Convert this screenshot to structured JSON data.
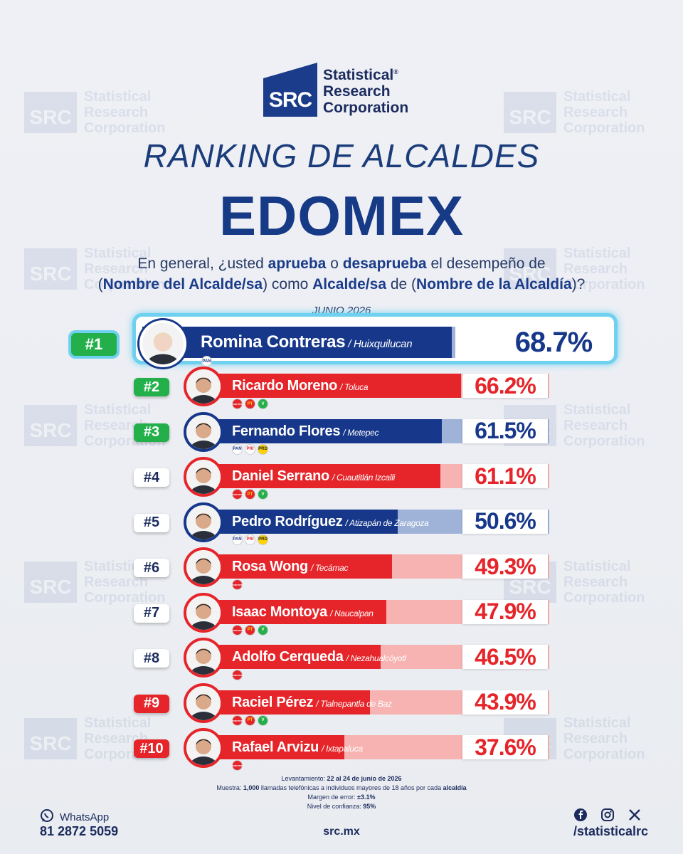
{
  "logo": {
    "abbr": "SRC",
    "line1": "Statistical",
    "line2": "Research",
    "line3": "Corporation",
    "reg": "®"
  },
  "title_line1": "RANKING DE ALCALDES",
  "title_line2": "EDOMEX",
  "question": {
    "p1": "En general, ¿usted ",
    "b1": "aprueba",
    "p2": " o ",
    "b2": "desaprueba",
    "p3": " el desempeño de",
    "p4": "(",
    "b3": "Nombre del Alcalde/sa",
    "p5": ") como ",
    "b4": "Alcalde/sa",
    "p6": " de (",
    "b5": "Nombre de la Alcaldía",
    "p7": ")?"
  },
  "date": "JUNIO 2026",
  "chart_data": {
    "type": "bar",
    "orientation": "horizontal",
    "title": "RANKING DE ALCALDES EDOMEX",
    "unit": "%",
    "xlim": [
      0,
      100
    ],
    "categories": [
      "Romina Contreras",
      "Ricardo Moreno",
      "Fernando Flores",
      "Daniel Serrano",
      "Pedro Rodríguez",
      "Rosa Wong",
      "Isaac Montoya",
      "Adolfo Cerqueda",
      "Raciel Pérez",
      "Rafael Arvizu"
    ],
    "values": [
      68.7,
      66.2,
      61.5,
      61.1,
      50.6,
      49.3,
      47.9,
      46.5,
      43.9,
      37.6
    ],
    "rows": [
      {
        "rank": "#1",
        "name": "Romina Contreras",
        "city": "/ Huixquilucan",
        "label": "68.7%",
        "value": 68.7,
        "color": "blue",
        "rank_style": "g",
        "parties": [
          "PAN"
        ]
      },
      {
        "rank": "#2",
        "name": "Ricardo Moreno",
        "city": "/ Toluca",
        "label": "66.2%",
        "value": 66.2,
        "color": "red",
        "rank_style": "g",
        "parties": [
          "MORENA",
          "PT",
          "PVEM"
        ]
      },
      {
        "rank": "#3",
        "name": "Fernando Flores",
        "city": "/ Metepec",
        "label": "61.5%",
        "value": 61.5,
        "color": "blue",
        "rank_style": "g",
        "parties": [
          "PAN",
          "PRI",
          "PRD"
        ]
      },
      {
        "rank": "#4",
        "name": "Daniel Serrano",
        "city": "/ Cuautitlán Izcalli",
        "label": "61.1%",
        "value": 61.1,
        "color": "red",
        "rank_style": "w",
        "parties": [
          "MORENA",
          "PT",
          "PVEM"
        ]
      },
      {
        "rank": "#5",
        "name": "Pedro Rodríguez",
        "city": "/ Atizapán de Zaragoza",
        "label": "50.6%",
        "value": 50.6,
        "color": "blue",
        "rank_style": "w",
        "parties": [
          "PAN",
          "PRI",
          "PRD"
        ]
      },
      {
        "rank": "#6",
        "name": "Rosa Wong",
        "city": "/ Tecámac",
        "label": "49.3%",
        "value": 49.3,
        "color": "red",
        "rank_style": "w",
        "parties": [
          "MORENA"
        ]
      },
      {
        "rank": "#7",
        "name": "Isaac Montoya",
        "city": "/ Naucalpan",
        "label": "47.9%",
        "value": 47.9,
        "color": "red",
        "rank_style": "w",
        "parties": [
          "MORENA",
          "PT",
          "PVEM"
        ]
      },
      {
        "rank": "#8",
        "name": "Adolfo Cerqueda",
        "city": "/ Nezahualcóyotl",
        "label": "46.5%",
        "value": 46.5,
        "color": "red",
        "rank_style": "w",
        "parties": [
          "MORENA"
        ]
      },
      {
        "rank": "#9",
        "name": "Raciel Pérez",
        "city": "/ Tlalnepantla de Baz",
        "label": "43.9%",
        "value": 43.9,
        "color": "red",
        "rank_style": "r",
        "parties": [
          "MORENA",
          "PT",
          "PVEM"
        ]
      },
      {
        "rank": "#10",
        "name": "Rafael Arvizu",
        "city": "/ Ixtapaluca",
        "label": "37.6%",
        "value": 37.6,
        "color": "red",
        "rank_style": "r",
        "parties": [
          "MORENA"
        ]
      }
    ]
  },
  "party_labels": {
    "PAN": "PAN",
    "MORENA": "morena",
    "PT": "PT",
    "PVEM": "V",
    "PRI": "PRI",
    "PRD": "PRD"
  },
  "colors": {
    "blue": "#17388a",
    "blue_light": "#9fb3d8",
    "red": "#e5252a",
    "red_light": "#f6b3b1",
    "green": "#23b04a",
    "navy_text": "#1b2b5e"
  },
  "footer": {
    "l1_label": "Levantamiento: ",
    "l1_value": "22 al 24 de junio de 2026",
    "l2_label": "Muestra: ",
    "l2_value": "1,000",
    "l2_rest": " llamadas telefónicas a individuos mayores de 18 años por cada ",
    "l2_bold": "alcaldía",
    "l3_label": "Margen de error: ",
    "l3_value": "±3.1%",
    "l4_label": "Nivel de confianza: ",
    "l4_value": "95%"
  },
  "contact": {
    "whatsapp_label": "WhatsApp",
    "phone": "81 2872 5059",
    "site": "src.mx",
    "handle": "/statisticalrc"
  },
  "icons": [
    "whatsapp-icon",
    "facebook-icon",
    "instagram-icon",
    "x-icon"
  ]
}
